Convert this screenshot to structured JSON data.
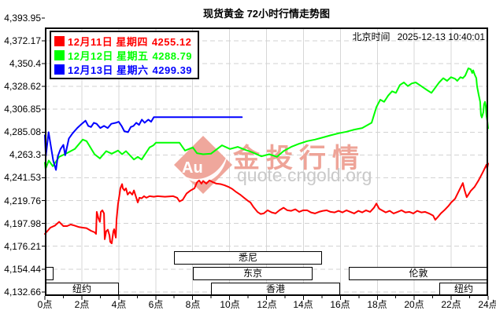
{
  "header": {
    "title": "现货黄金 72小时行情走势图",
    "time_label": "北京时间",
    "datetime": "2025-12-13 10:40:01"
  },
  "legend": {
    "items": [
      {
        "label": "12月11日 星期四",
        "value": "4255.12",
        "color": "#ff0000"
      },
      {
        "label": "12月12日 星期五",
        "value": "4288.79",
        "color": "#00ff00"
      },
      {
        "label": "12月13日 星期六",
        "value": "4299.39",
        "color": "#0000ff"
      }
    ]
  },
  "watermark": {
    "logo_text": "Au",
    "brand": "金投行情",
    "url": "quote.cngold.org",
    "brand_color": "#eea498",
    "url_color": "#c9c9c9"
  },
  "chart_data": {
    "type": "line",
    "title": "现货黄金 72小时行情走势图",
    "xlabel": "",
    "ylabel": "",
    "x_range_hours": [
      0,
      24
    ],
    "grid": true,
    "legend_position": "top-left",
    "x_axis": {
      "labels": [
        "0点",
        "2点",
        "4点",
        "6点",
        "8点",
        "10点",
        "12点",
        "14点",
        "16点",
        "18点",
        "20点",
        "22点",
        "24点"
      ],
      "hours": [
        0,
        2,
        4,
        6,
        8,
        10,
        12,
        14,
        16,
        18,
        20,
        22,
        24
      ]
    },
    "y_axis": {
      "labels": [
        "4,393.95",
        "4,372.17",
        "4,350.4",
        "4,328.62",
        "4,306.85",
        "4,285.08",
        "4,263.3",
        "4,241.53",
        "4,219.76",
        "4,197.98",
        "4,176.21",
        "4,154.44",
        "4,132.66"
      ],
      "values": [
        4393.95,
        4372.17,
        4350.4,
        4328.62,
        4306.85,
        4285.08,
        4263.3,
        4241.53,
        4219.76,
        4197.98,
        4176.21,
        4154.44,
        4132.66
      ]
    },
    "series": [
      {
        "key": "dec11-thursday",
        "name": "12月11日 星期四",
        "close": 4255.12,
        "color": "#ff0000",
        "points": [
          [
            0,
            4188
          ],
          [
            0.3,
            4194
          ],
          [
            0.55,
            4196
          ],
          [
            0.77,
            4199.5
          ],
          [
            1.0,
            4195.5
          ],
          [
            1.2,
            4195.5
          ],
          [
            1.4,
            4197
          ],
          [
            1.6,
            4196
          ],
          [
            1.85,
            4194.5
          ],
          [
            2.05,
            4194
          ],
          [
            2.25,
            4193.5
          ],
          [
            2.5,
            4191
          ],
          [
            2.7,
            4189.5
          ],
          [
            2.77,
            4188
          ],
          [
            2.81,
            4209
          ],
          [
            2.9,
            4203
          ],
          [
            2.98,
            4199.5
          ],
          [
            3.03,
            4209
          ],
          [
            3.11,
            4210.5
          ],
          [
            3.2,
            4207.5
          ],
          [
            3.24,
            4183
          ],
          [
            3.32,
            4190.5
          ],
          [
            3.41,
            4192
          ],
          [
            3.5,
            4186.5
          ],
          [
            3.54,
            4180.5
          ],
          [
            3.62,
            4179
          ],
          [
            3.71,
            4190.5
          ],
          [
            3.75,
            4192.5
          ],
          [
            3.84,
            4184.5
          ],
          [
            3.88,
            4201.5
          ],
          [
            3.96,
            4216.5
          ],
          [
            4.05,
            4226.5
          ],
          [
            4.09,
            4231.5
          ],
          [
            4.18,
            4235.5
          ],
          [
            4.22,
            4231.5
          ],
          [
            4.31,
            4229.5
          ],
          [
            4.39,
            4231.5
          ],
          [
            4.48,
            4225.5
          ],
          [
            4.6,
            4228
          ],
          [
            4.73,
            4225.5
          ],
          [
            4.82,
            4229.5
          ],
          [
            4.95,
            4222.5
          ],
          [
            5.03,
            4218
          ],
          [
            5.12,
            4222.5
          ],
          [
            5.24,
            4222
          ],
          [
            5.37,
            4224
          ],
          [
            5.5,
            4222.5
          ],
          [
            5.67,
            4224
          ],
          [
            5.9,
            4223.5
          ],
          [
            6.1,
            4224
          ],
          [
            6.5,
            4223.5
          ],
          [
            6.95,
            4224
          ],
          [
            7.16,
            4222.5
          ],
          [
            7.29,
            4219
          ],
          [
            7.46,
            4220.5
          ],
          [
            7.67,
            4226.5
          ],
          [
            7.89,
            4229.5
          ],
          [
            8.1,
            4231.5
          ],
          [
            8.23,
            4237
          ],
          [
            8.35,
            4239
          ],
          [
            8.48,
            4236
          ],
          [
            8.57,
            4238.5
          ],
          [
            8.74,
            4236
          ],
          [
            8.91,
            4239
          ],
          [
            9.08,
            4237.5
          ],
          [
            9.29,
            4236
          ],
          [
            9.51,
            4235.5
          ],
          [
            9.72,
            4234.5
          ],
          [
            9.93,
            4233
          ],
          [
            10.14,
            4231
          ],
          [
            10.36,
            4228
          ],
          [
            10.57,
            4225.5
          ],
          [
            10.78,
            4222.5
          ],
          [
            11.0,
            4219.5
          ],
          [
            11.13,
            4218
          ],
          [
            11.3,
            4213.5
          ],
          [
            11.51,
            4209
          ],
          [
            11.68,
            4207
          ],
          [
            11.85,
            4207.5
          ],
          [
            12.06,
            4210.5
          ],
          [
            12.28,
            4208.5
          ],
          [
            12.49,
            4207.5
          ],
          [
            12.7,
            4210.5
          ],
          [
            12.92,
            4213
          ],
          [
            13.13,
            4210.5
          ],
          [
            13.34,
            4210
          ],
          [
            13.56,
            4211.5
          ],
          [
            13.77,
            4209
          ],
          [
            13.98,
            4210.5
          ],
          [
            14.2,
            4210.5
          ],
          [
            14.41,
            4208.5
          ],
          [
            14.62,
            4207.5
          ],
          [
            14.84,
            4209
          ],
          [
            15.05,
            4210
          ],
          [
            15.26,
            4210.5
          ],
          [
            15.47,
            4209
          ],
          [
            15.69,
            4208.5
          ],
          [
            15.9,
            4210
          ],
          [
            16.11,
            4208.5
          ],
          [
            16.33,
            4210.5
          ],
          [
            16.54,
            4209
          ],
          [
            16.75,
            4207.5
          ],
          [
            16.97,
            4210
          ],
          [
            17.18,
            4208.5
          ],
          [
            17.39,
            4210.5
          ],
          [
            17.61,
            4209
          ],
          [
            17.82,
            4213
          ],
          [
            17.95,
            4217
          ],
          [
            18.1,
            4212
          ],
          [
            18.25,
            4210.5
          ],
          [
            18.46,
            4208.5
          ],
          [
            18.67,
            4210
          ],
          [
            18.88,
            4207.5
          ],
          [
            19.1,
            4209
          ],
          [
            19.31,
            4210.5
          ],
          [
            19.52,
            4208.5
          ],
          [
            19.74,
            4209
          ],
          [
            19.95,
            4207.5
          ],
          [
            20.16,
            4210
          ],
          [
            20.38,
            4208.5
          ],
          [
            20.59,
            4209
          ],
          [
            20.8,
            4207.5
          ],
          [
            21.02,
            4205.5
          ],
          [
            21.14,
            4201.5
          ],
          [
            21.27,
            4204
          ],
          [
            21.44,
            4207.5
          ],
          [
            21.65,
            4211
          ],
          [
            21.87,
            4215
          ],
          [
            22.0,
            4218
          ],
          [
            22.21,
            4221.5
          ],
          [
            22.42,
            4229
          ],
          [
            22.63,
            4236.5
          ],
          [
            22.72,
            4230
          ],
          [
            22.84,
            4223
          ],
          [
            22.95,
            4226
          ],
          [
            23.06,
            4229
          ],
          [
            23.27,
            4233
          ],
          [
            23.48,
            4239
          ],
          [
            23.7,
            4246.5
          ],
          [
            23.83,
            4251
          ],
          [
            23.91,
            4254
          ],
          [
            23.95,
            4250.5
          ],
          [
            24,
            4255.12
          ]
        ]
      },
      {
        "key": "dec12-friday",
        "name": "12月12日 星期五",
        "close": 4288.79,
        "color": "#00ff00",
        "points": [
          [
            0,
            4256
          ],
          [
            0.04,
            4250
          ],
          [
            0.21,
            4258
          ],
          [
            0.43,
            4252.5
          ],
          [
            0.77,
            4261.5
          ],
          [
            1.19,
            4265
          ],
          [
            1.62,
            4269
          ],
          [
            2.05,
            4278
          ],
          [
            2.26,
            4276.5
          ],
          [
            2.69,
            4264
          ],
          [
            2.98,
            4260
          ],
          [
            3.32,
            4267
          ],
          [
            3.62,
            4264.5
          ],
          [
            3.96,
            4267.5
          ],
          [
            4.18,
            4264
          ],
          [
            4.39,
            4267
          ],
          [
            4.82,
            4259
          ],
          [
            5.03,
            4261.5
          ],
          [
            5.24,
            4259
          ],
          [
            5.67,
            4270.5
          ],
          [
            5.88,
            4272.5
          ],
          [
            6.01,
            4275
          ],
          [
            7.29,
            4275
          ],
          [
            7.59,
            4267.5
          ],
          [
            8.01,
            4270.5
          ],
          [
            8.23,
            4265
          ],
          [
            8.57,
            4264
          ],
          [
            8.99,
            4264.5
          ],
          [
            9.59,
            4272.5
          ],
          [
            10.02,
            4269
          ],
          [
            10.44,
            4271
          ],
          [
            10.87,
            4268
          ],
          [
            11.21,
            4266
          ],
          [
            11.72,
            4262
          ],
          [
            12.15,
            4264
          ],
          [
            12.57,
            4261.5
          ],
          [
            12.92,
            4267
          ],
          [
            13.34,
            4271
          ],
          [
            13.77,
            4274
          ],
          [
            14.2,
            4276.5
          ],
          [
            14.62,
            4278
          ],
          [
            15.05,
            4280
          ],
          [
            15.47,
            4282
          ],
          [
            15.9,
            4284
          ],
          [
            16.33,
            4285.5
          ],
          [
            16.75,
            4287.5
          ],
          [
            17.18,
            4289
          ],
          [
            17.69,
            4294
          ],
          [
            17.95,
            4309
          ],
          [
            18.16,
            4316
          ],
          [
            18.37,
            4314
          ],
          [
            18.59,
            4320
          ],
          [
            18.8,
            4324
          ],
          [
            19.01,
            4322.5
          ],
          [
            19.22,
            4330
          ],
          [
            19.44,
            4332.5
          ],
          [
            19.65,
            4329
          ],
          [
            19.86,
            4331.5
          ],
          [
            20.08,
            4332.5
          ],
          [
            20.29,
            4330
          ],
          [
            20.5,
            4327.5
          ],
          [
            20.71,
            4325
          ],
          [
            20.93,
            4322.5
          ],
          [
            21.14,
            4327.5
          ],
          [
            21.35,
            4332.5
          ],
          [
            21.57,
            4336.5
          ],
          [
            21.78,
            4334
          ],
          [
            21.99,
            4337.5
          ],
          [
            22.21,
            4336
          ],
          [
            22.33,
            4334
          ],
          [
            22.5,
            4337.5
          ],
          [
            22.63,
            4336.5
          ],
          [
            22.76,
            4339
          ],
          [
            22.93,
            4346
          ],
          [
            23.06,
            4345
          ],
          [
            23.14,
            4341.5
          ],
          [
            23.19,
            4344
          ],
          [
            23.27,
            4340
          ],
          [
            23.36,
            4336.5
          ],
          [
            23.4,
            4329
          ],
          [
            23.48,
            4321.5
          ],
          [
            23.57,
            4314
          ],
          [
            23.61,
            4301.5
          ],
          [
            23.66,
            4299
          ],
          [
            23.74,
            4304
          ],
          [
            23.78,
            4311.5
          ],
          [
            23.83,
            4314
          ],
          [
            23.87,
            4310
          ],
          [
            23.91,
            4301
          ],
          [
            23.96,
            4295
          ],
          [
            24,
            4288.79
          ]
        ]
      },
      {
        "key": "dec13-saturday",
        "name": "12月13日 星期六",
        "close": 4299.39,
        "color": "#0000ff",
        "points": [
          [
            0,
            4282
          ],
          [
            0.05,
            4262
          ],
          [
            0.2,
            4285
          ],
          [
            0.45,
            4258
          ],
          [
            0.6,
            4249
          ],
          [
            0.7,
            4262
          ],
          [
            0.85,
            4269
          ],
          [
            1.0,
            4273
          ],
          [
            1.1,
            4263
          ],
          [
            1.3,
            4279
          ],
          [
            1.5,
            4284
          ],
          [
            1.75,
            4289
          ],
          [
            2.0,
            4293
          ],
          [
            2.2,
            4296
          ],
          [
            2.35,
            4291
          ],
          [
            2.5,
            4290
          ],
          [
            2.65,
            4294
          ],
          [
            2.8,
            4293
          ],
          [
            3.0,
            4289
          ],
          [
            3.2,
            4291
          ],
          [
            3.4,
            4289
          ],
          [
            3.6,
            4293
          ],
          [
            3.85,
            4294
          ],
          [
            4.0,
            4295
          ],
          [
            4.15,
            4291
          ],
          [
            4.3,
            4286
          ],
          [
            4.5,
            4285
          ],
          [
            4.65,
            4290
          ],
          [
            4.8,
            4291
          ],
          [
            4.95,
            4294
          ],
          [
            5.1,
            4292
          ],
          [
            5.25,
            4297
          ],
          [
            5.4,
            4294
          ],
          [
            5.6,
            4297
          ],
          [
            5.75,
            4295
          ],
          [
            5.9,
            4299.39
          ],
          [
            10.67,
            4299.39
          ]
        ]
      }
    ],
    "sessions": [
      {
        "label": "悉尼",
        "row": 0,
        "start": 7.0,
        "end": 15.0
      },
      {
        "label": "东京",
        "row": 1,
        "start": 8.0,
        "end": 14.5
      },
      {
        "label": "",
        "row": 1,
        "start": 0,
        "end": 0.45
      },
      {
        "label": "伦敦",
        "row": 1,
        "start": 16.45,
        "end": 24
      },
      {
        "label": "纽约",
        "row": 2,
        "start": 0,
        "end": 4.0
      },
      {
        "label": "香港",
        "row": 2,
        "start": 9.0,
        "end": 16.0
      },
      {
        "label": "纽约",
        "row": 2,
        "start": 21.35,
        "end": 24
      }
    ]
  }
}
